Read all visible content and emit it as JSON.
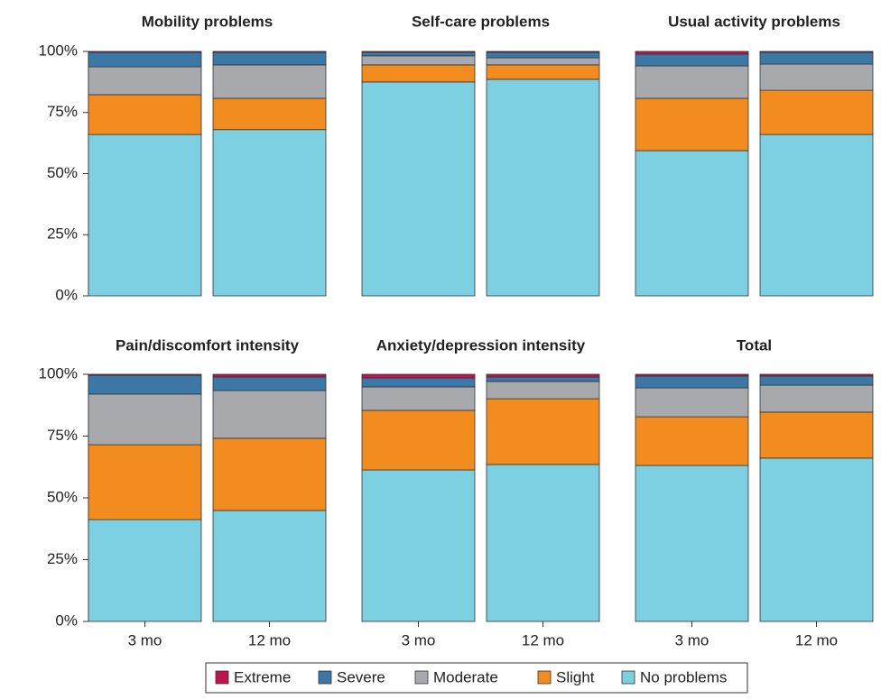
{
  "chart_data": [
    {
      "type": "bar",
      "stacked": true,
      "title": "Mobility problems",
      "categories": [
        null,
        null
      ],
      "ylim": [
        0,
        100
      ],
      "yticks": [
        {
          "value": 0,
          "label": "0%"
        },
        {
          "value": 25,
          "label": "25%"
        },
        {
          "value": 50,
          "label": "50%"
        },
        {
          "value": 75,
          "label": "75%"
        },
        {
          "value": 100,
          "label": "100%"
        }
      ],
      "series": [
        {
          "name": "Extreme",
          "color": "#c0124e",
          "values": [
            0.4,
            0.4
          ]
        },
        {
          "name": "Severe",
          "color": "#3b78a6",
          "values": [
            5.9,
            5.1
          ]
        },
        {
          "name": "Moderate",
          "color": "#a7a9ac",
          "values": [
            11.4,
            13.7
          ]
        },
        {
          "name": "Slight",
          "color": "#f28c1e",
          "values": [
            16.3,
            12.8
          ]
        },
        {
          "name": "No problems",
          "color": "#7dd0e1",
          "values": [
            66,
            68
          ]
        }
      ]
    },
    {
      "type": "bar",
      "stacked": true,
      "title": "Self-care problems",
      "categories": [
        null,
        null
      ],
      "ylim": [
        0,
        100
      ],
      "series": [
        {
          "name": "Extreme",
          "color": "#c0124e",
          "values": [
            0.4,
            0.4
          ]
        },
        {
          "name": "Severe",
          "color": "#3b78a6",
          "values": [
            1.4,
            2.2
          ]
        },
        {
          "name": "Moderate",
          "color": "#a7a9ac",
          "values": [
            3.7,
            2.9
          ]
        },
        {
          "name": "Slight",
          "color": "#f28c1e",
          "values": [
            7,
            5.9
          ]
        },
        {
          "name": "No problems",
          "color": "#7dd0e1",
          "values": [
            87.5,
            88.6
          ]
        }
      ]
    },
    {
      "type": "bar",
      "stacked": true,
      "title": "Usual activity problems",
      "categories": [
        null,
        null
      ],
      "ylim": [
        0,
        100
      ],
      "series": [
        {
          "name": "Extreme",
          "color": "#c0124e",
          "values": [
            1.1,
            0.4
          ]
        },
        {
          "name": "Severe",
          "color": "#3b78a6",
          "values": [
            4.8,
            4.8
          ]
        },
        {
          "name": "Moderate",
          "color": "#a7a9ac",
          "values": [
            13.3,
            10.7
          ]
        },
        {
          "name": "Slight",
          "color": "#f28c1e",
          "values": [
            21.4,
            18.1
          ]
        },
        {
          "name": "No problems",
          "color": "#7dd0e1",
          "values": [
            59.4,
            66
          ]
        }
      ]
    },
    {
      "type": "bar",
      "stacked": true,
      "title": "Pain/discomfort intensity",
      "categories": [
        "3 mo",
        "12 mo"
      ],
      "ylim": [
        0,
        100
      ],
      "yticks": [
        {
          "value": 0,
          "label": "0%"
        },
        {
          "value": 25,
          "label": "25%"
        },
        {
          "value": 50,
          "label": "50%"
        },
        {
          "value": 75,
          "label": "75%"
        },
        {
          "value": 100,
          "label": "100%"
        }
      ],
      "series": [
        {
          "name": "Extreme",
          "color": "#c0124e",
          "values": [
            0.4,
            1.1
          ]
        },
        {
          "name": "Severe",
          "color": "#3b78a6",
          "values": [
            7.6,
            5.5
          ]
        },
        {
          "name": "Moderate",
          "color": "#a7a9ac",
          "values": [
            20.5,
            19.3
          ]
        },
        {
          "name": "Slight",
          "color": "#f28c1e",
          "values": [
            30.3,
            29.2
          ]
        },
        {
          "name": "No problems",
          "color": "#7dd0e1",
          "values": [
            41.2,
            44.9
          ]
        }
      ]
    },
    {
      "type": "bar",
      "stacked": true,
      "title": "Anxiety/depression intensity",
      "categories": [
        "3 mo",
        "12 mo"
      ],
      "ylim": [
        0,
        100
      ],
      "series": [
        {
          "name": "Extreme",
          "color": "#c0124e",
          "values": [
            1.5,
            1.1
          ]
        },
        {
          "name": "Severe",
          "color": "#3b78a6",
          "values": [
            3.6,
            1.8
          ]
        },
        {
          "name": "Moderate",
          "color": "#a7a9ac",
          "values": [
            9.5,
            7
          ]
        },
        {
          "name": "Slight",
          "color": "#f28c1e",
          "values": [
            24.1,
            26.6
          ]
        },
        {
          "name": "No problems",
          "color": "#7dd0e1",
          "values": [
            61.3,
            63.5
          ]
        }
      ]
    },
    {
      "type": "bar",
      "stacked": true,
      "title": "Total",
      "categories": [
        "3 mo",
        "12 mo"
      ],
      "ylim": [
        0,
        100
      ],
      "series": [
        {
          "name": "Extreme",
          "color": "#c0124e",
          "values": [
            0.7,
            0.7
          ]
        },
        {
          "name": "Severe",
          "color": "#3b78a6",
          "values": [
            4.8,
            3.7
          ]
        },
        {
          "name": "Moderate",
          "color": "#a7a9ac",
          "values": [
            11.7,
            10.9
          ]
        },
        {
          "name": "Slight",
          "color": "#f28c1e",
          "values": [
            19.7,
            18.6
          ]
        },
        {
          "name": "No problems",
          "color": "#7dd0e1",
          "values": [
            63.1,
            66.1
          ]
        }
      ]
    }
  ]
}
